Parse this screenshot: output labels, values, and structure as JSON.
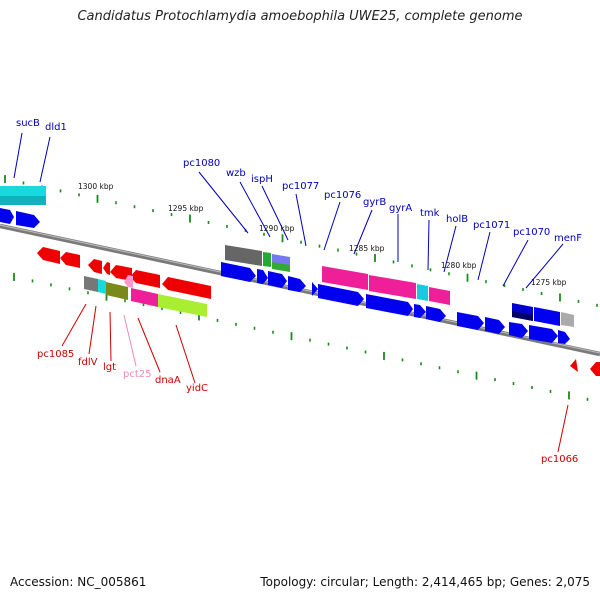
{
  "title": "Candidatus Protochlamydia amoebophila UWE25, complete genome",
  "footer": {
    "accession": "Accession: NC_005861",
    "topology": "Topology: circular; Length: 2,414,465 bp; Genes: 2,075"
  },
  "colors": {
    "backbone": "#7a7a7a",
    "forward_label": "#0000bb",
    "reverse_label": "#cc0000",
    "pseudogene_label": "#ee88bb",
    "tick": "#1a8a1a"
  },
  "scale_labels": [
    "1300 kbp",
    "1295 kbp",
    "1290 kbp",
    "1285 kbp",
    "1280 kbp",
    "1275 kbp"
  ],
  "gene_labels_forward": [
    "sucB",
    "dld1",
    "pc1080",
    "wzb",
    "ispH",
    "pc1077",
    "pc1076",
    "gyrB",
    "gyrA",
    "tmk",
    "holB",
    "pc1071",
    "pc1070",
    "menF"
  ],
  "gene_labels_reverse": [
    "pc1085",
    "fdlV",
    "lgt",
    "pct25",
    "dnaA",
    "yidC",
    "pc1066"
  ]
}
